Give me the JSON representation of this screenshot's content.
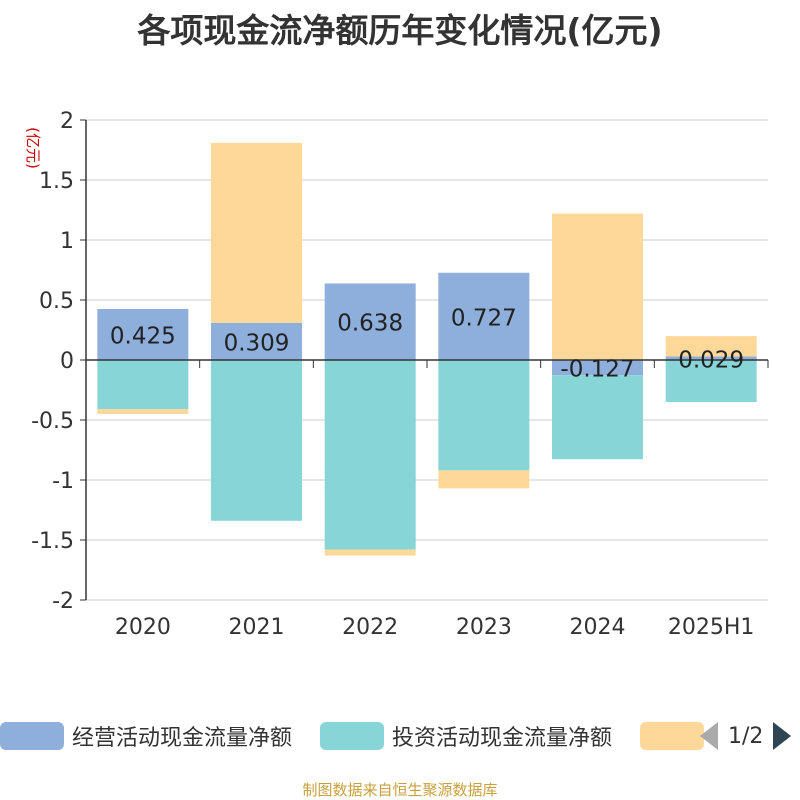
{
  "title": "各项现金流净额历年变化情况(亿元)",
  "source": "制图数据来自恒生聚源数据库",
  "legend": {
    "items": [
      {
        "label": "经营活动现金流量净额",
        "color": "#8eaedc"
      },
      {
        "label": "投资活动现金流量净额",
        "color": "#88d5d8"
      },
      {
        "label": "",
        "color": "#fdd898"
      }
    ],
    "pager": "1/2"
  },
  "chart_data": {
    "type": "bar",
    "stacked": true,
    "categories": [
      "2020",
      "2021",
      "2022",
      "2023",
      "2024",
      "2025H1"
    ],
    "ylabel": "(亿元)",
    "ylim": [
      -2,
      2
    ],
    "yticks": [
      2,
      1.5,
      1,
      0.5,
      0,
      -0.5,
      -1,
      -1.5,
      -2
    ],
    "ytick_labels": [
      "2",
      "1.5",
      "1",
      "0.5",
      "0",
      "-0.5",
      "-1",
      "-1.5",
      "-2"
    ],
    "grid": true,
    "legend_position": "bottom",
    "series": [
      {
        "name": "经营活动现金流量净额",
        "color": "#8eaedc",
        "values": [
          0.425,
          0.309,
          0.638,
          0.727,
          -0.127,
          0.029
        ],
        "labels": [
          "0.425",
          "0.309",
          "0.638",
          "0.727",
          "-0.127",
          "0.029"
        ]
      },
      {
        "name": "投资活动现金流量净额",
        "color": "#88d5d8",
        "values": [
          -0.41,
          -1.34,
          -1.58,
          -0.92,
          -0.7,
          -0.35
        ]
      },
      {
        "color": "#fdd898",
        "values": [
          -0.04,
          1.5,
          -0.05,
          -0.15,
          1.22,
          0.17
        ]
      }
    ]
  }
}
